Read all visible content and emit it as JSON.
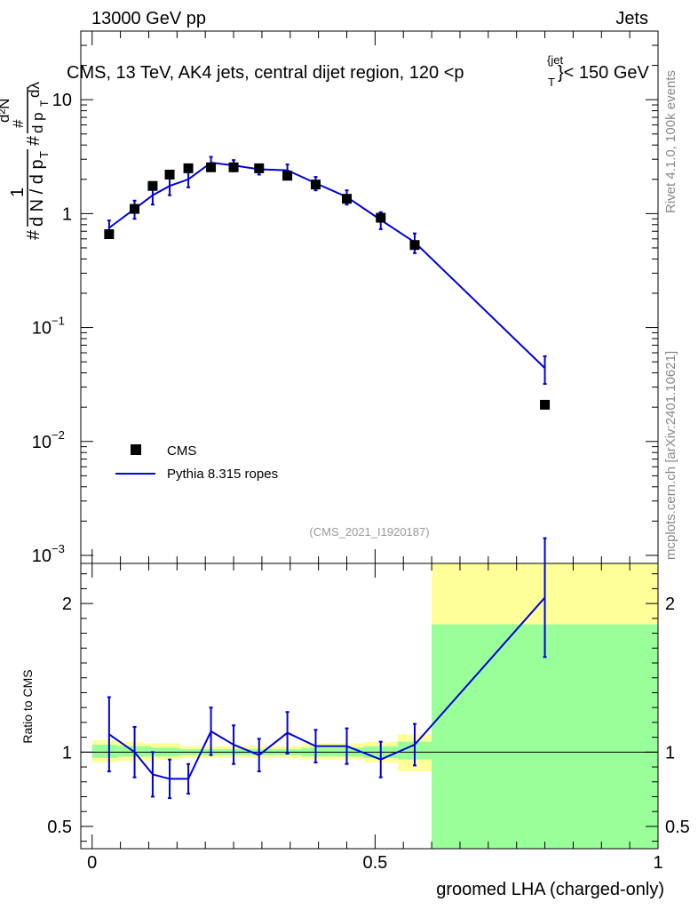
{
  "header": {
    "energy": "13000 GeV pp",
    "category": "Jets",
    "title_main": "CMS, 13 TeV, AK4 jets, central dijet region, 120 <p",
    "title_sup": "{jet",
    "title_sub": "T",
    "title_tail": "}< 150 GeV",
    "rivet": "Rivet 4.1.0,  100k events",
    "mcplots": "mcplots.cern.ch [arXiv:2401.10621]",
    "analysis": "(CMS_2021_I1920187)"
  },
  "yaxis_top": {
    "hash1": "#",
    "one": "1",
    "denom1": "d N / d p",
    "denom1_sub": "T",
    "hash2": "#",
    "d2n": "d²N",
    "hash3": "#",
    "denom2": "d p",
    "denom2_sub": "T",
    "dlambda": "dλ"
  },
  "colors": {
    "data": "#000000",
    "mc": "#0000dd",
    "band_green": "#99ff99",
    "band_yellow": "#ffff99",
    "analysis_text": "#999999",
    "side_text": "#888888"
  },
  "chart_data": [
    {
      "type": "scatter",
      "panel": "main",
      "yscale": "log",
      "ylim": [
        0.00085,
        40
      ],
      "xlim": [
        -0.02,
        1.0
      ],
      "yticks": [
        {
          "value": 10,
          "label": "10"
        },
        {
          "value": 1,
          "label": "1"
        },
        {
          "value": 0.1,
          "base": "10",
          "exp": "−1"
        },
        {
          "value": 0.01,
          "base": "10",
          "exp": "−2"
        },
        {
          "value": 0.001,
          "base": "10",
          "exp": "−3"
        }
      ],
      "legend": {
        "position": "lower-left",
        "entries": [
          "CMS",
          "Pythia 8.315 ropes"
        ]
      },
      "series": [
        {
          "name": "CMS",
          "style": "markers",
          "x": [
            0.03,
            0.075,
            0.107,
            0.137,
            0.17,
            0.21,
            0.25,
            0.295,
            0.345,
            0.395,
            0.45,
            0.51,
            0.57,
            0.8
          ],
          "y": [
            0.66,
            1.1,
            1.75,
            2.2,
            2.5,
            2.55,
            2.55,
            2.5,
            2.15,
            1.8,
            1.35,
            0.92,
            0.53,
            0.021
          ]
        },
        {
          "name": "Pythia 8.315 ropes",
          "style": "line",
          "x": [
            0.03,
            0.075,
            0.107,
            0.137,
            0.17,
            0.21,
            0.25,
            0.295,
            0.345,
            0.395,
            0.45,
            0.51,
            0.57,
            0.8
          ],
          "y": [
            0.75,
            1.1,
            1.45,
            1.75,
            2.0,
            2.8,
            2.65,
            2.45,
            2.4,
            1.85,
            1.4,
            0.88,
            0.56,
            0.044
          ],
          "yerr": [
            0.12,
            0.2,
            0.25,
            0.3,
            0.3,
            0.35,
            0.3,
            0.25,
            0.3,
            0.25,
            0.2,
            0.15,
            0.11,
            0.012
          ]
        }
      ]
    },
    {
      "type": "line",
      "panel": "ratio",
      "ylabel": "Ratio to CMS",
      "ylim": [
        0.35,
        2.27
      ],
      "xlim": [
        -0.02,
        1.0
      ],
      "xlabel": "groomed LHA (charged-only)",
      "yticks": [
        {
          "value": 2,
          "label": "2"
        },
        {
          "value": 1,
          "label": "1"
        },
        {
          "value": 0.5,
          "label": "0.5"
        }
      ],
      "xticks": [
        {
          "value": 0,
          "label": "0"
        },
        {
          "value": 0.5,
          "label": "0.5"
        },
        {
          "value": 1,
          "label": "1"
        }
      ],
      "reference_line": 1,
      "bands": {
        "bin_edges": [
          0.0,
          0.045,
          0.09,
          0.105,
          0.125,
          0.155,
          0.19,
          0.23,
          0.27,
          0.32,
          0.37,
          0.42,
          0.48,
          0.54,
          0.6,
          1.0
        ],
        "green": [
          [
            0.96,
            1.05
          ],
          [
            0.97,
            1.04
          ],
          [
            0.97,
            1.04
          ],
          [
            0.97,
            1.03
          ],
          [
            0.97,
            1.03
          ],
          [
            0.98,
            1.02
          ],
          [
            0.98,
            1.02
          ],
          [
            0.98,
            1.02
          ],
          [
            0.98,
            1.02
          ],
          [
            0.98,
            1.02
          ],
          [
            0.97,
            1.03
          ],
          [
            0.97,
            1.03
          ],
          [
            0.96,
            1.04
          ],
          [
            0.95,
            1.07
          ],
          [
            0.35,
            1.86
          ]
        ],
        "yellow": [
          [
            0.93,
            1.08
          ],
          [
            0.94,
            1.07
          ],
          [
            0.94,
            1.06
          ],
          [
            0.95,
            1.06
          ],
          [
            0.95,
            1.06
          ],
          [
            0.96,
            1.04
          ],
          [
            0.96,
            1.04
          ],
          [
            0.96,
            1.04
          ],
          [
            0.96,
            1.04
          ],
          [
            0.96,
            1.04
          ],
          [
            0.95,
            1.06
          ],
          [
            0.95,
            1.06
          ],
          [
            0.93,
            1.07
          ],
          [
            0.87,
            1.12
          ],
          [
            0.35,
            2.27
          ]
        ]
      },
      "series": [
        {
          "name": "Pythia 8.315 ropes / CMS",
          "x": [
            0.03,
            0.075,
            0.107,
            0.137,
            0.17,
            0.21,
            0.25,
            0.295,
            0.345,
            0.395,
            0.45,
            0.51,
            0.57,
            0.8
          ],
          "y": [
            1.12,
            1.0,
            0.85,
            0.82,
            0.82,
            1.14,
            1.05,
            0.98,
            1.13,
            1.04,
            1.04,
            0.95,
            1.05,
            2.04
          ],
          "yerr": [
            0.25,
            0.17,
            0.15,
            0.13,
            0.1,
            0.16,
            0.13,
            0.11,
            0.14,
            0.11,
            0.12,
            0.12,
            0.14,
            0.4
          ]
        }
      ]
    }
  ]
}
